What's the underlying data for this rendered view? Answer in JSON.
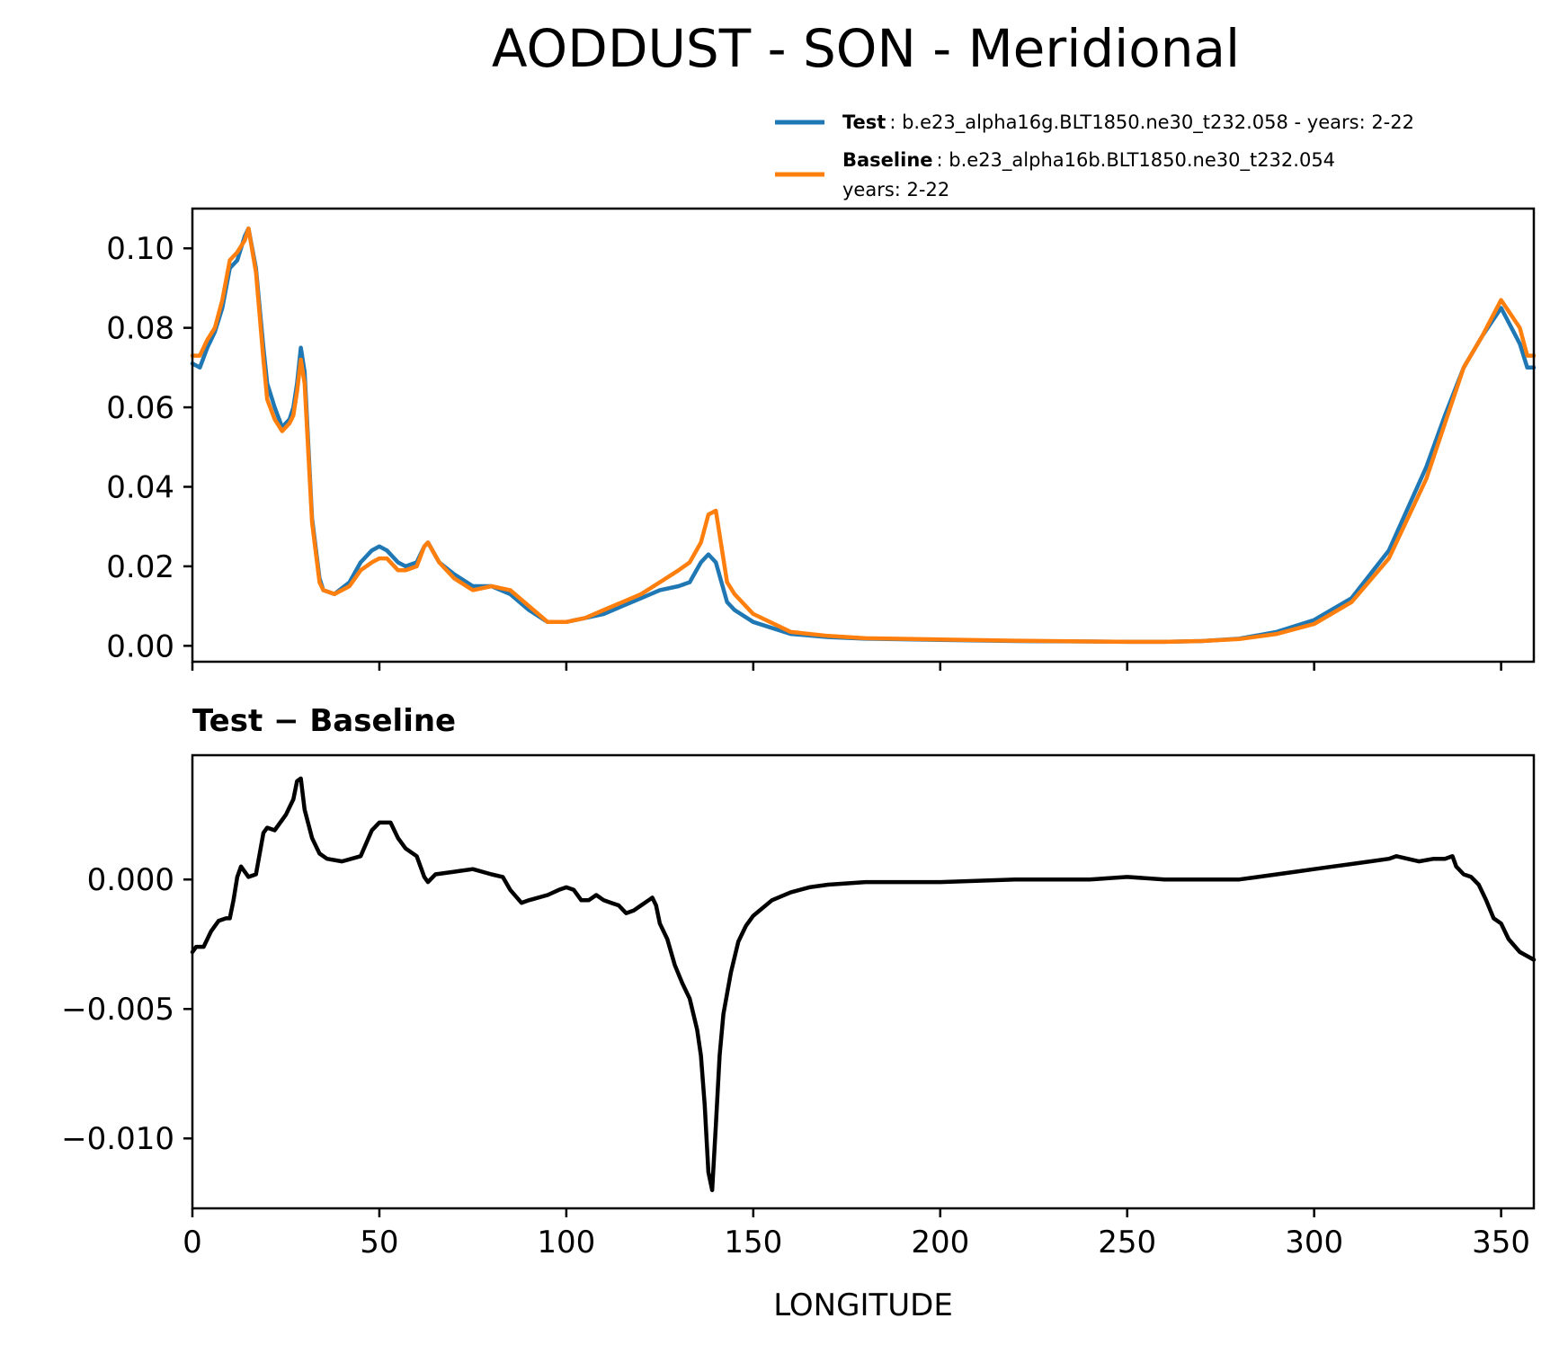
{
  "chart_data": [
    {
      "type": "line",
      "title": "AODDUST - SON - Meridional",
      "xlabel": "",
      "ylabel": "",
      "xlim": [
        0,
        358.75
      ],
      "ylim": [
        -0.004,
        0.11
      ],
      "yticks": [
        "0.00",
        "0.02",
        "0.04",
        "0.06",
        "0.08",
        "0.10"
      ],
      "ytick_values": [
        0,
        0.02,
        0.04,
        0.06,
        0.08,
        0.1
      ],
      "grid": false,
      "legend_position": "above-right",
      "legend": [
        {
          "bold": "Test",
          "text": ": b.e23_alpha16g.BLT1850.ne30_t232.058 - years: 2-22"
        },
        {
          "bold": "Baseline",
          "text": ": b.e23_alpha16b.BLT1850.ne30_t232.054",
          "text2": "years: 2-22"
        }
      ],
      "series": [
        {
          "name": "Test",
          "color": "#1f77b4",
          "x": [
            0,
            2,
            4,
            6,
            8,
            10,
            12,
            14,
            15,
            17,
            19,
            20,
            22,
            24,
            26,
            27,
            28,
            29,
            30,
            32,
            34,
            35,
            38,
            42,
            45,
            48,
            50,
            52,
            55,
            57,
            60,
            62,
            63,
            66,
            70,
            75,
            80,
            85,
            90,
            95,
            100,
            105,
            110,
            115,
            120,
            125,
            130,
            133,
            136,
            138,
            140,
            143,
            145,
            150,
            160,
            170,
            180,
            200,
            220,
            240,
            250,
            260,
            270,
            280,
            290,
            300,
            310,
            320,
            330,
            335,
            340,
            345,
            350,
            355,
            357,
            358.75
          ],
          "values": [
            0.071,
            0.07,
            0.075,
            0.079,
            0.085,
            0.095,
            0.097,
            0.103,
            0.105,
            0.095,
            0.075,
            0.066,
            0.06,
            0.055,
            0.057,
            0.06,
            0.066,
            0.075,
            0.069,
            0.032,
            0.017,
            0.014,
            0.013,
            0.016,
            0.021,
            0.024,
            0.025,
            0.024,
            0.021,
            0.02,
            0.021,
            0.025,
            0.026,
            0.021,
            0.018,
            0.015,
            0.015,
            0.013,
            0.009,
            0.006,
            0.006,
            0.007,
            0.008,
            0.01,
            0.012,
            0.014,
            0.015,
            0.016,
            0.021,
            0.023,
            0.021,
            0.011,
            0.009,
            0.006,
            0.003,
            0.0022,
            0.0018,
            0.0015,
            0.0012,
            0.0011,
            0.001,
            0.001,
            0.0012,
            0.0018,
            0.0035,
            0.0065,
            0.012,
            0.024,
            0.045,
            0.058,
            0.07,
            0.078,
            0.085,
            0.076,
            0.07,
            0.07
          ]
        },
        {
          "name": "Baseline",
          "color": "#ff7f0e",
          "x": [
            0,
            2,
            4,
            6,
            8,
            10,
            12,
            14,
            15,
            17,
            19,
            20,
            22,
            24,
            26,
            27,
            28,
            29,
            30,
            32,
            34,
            35,
            38,
            42,
            45,
            48,
            50,
            52,
            55,
            57,
            60,
            62,
            63,
            66,
            70,
            75,
            80,
            85,
            90,
            95,
            100,
            105,
            110,
            115,
            120,
            125,
            130,
            133,
            136,
            138,
            140,
            143,
            145,
            150,
            160,
            170,
            180,
            200,
            220,
            240,
            250,
            260,
            270,
            280,
            290,
            300,
            310,
            320,
            330,
            335,
            340,
            345,
            350,
            355,
            357,
            358.75
          ],
          "values": [
            0.073,
            0.073,
            0.077,
            0.08,
            0.087,
            0.097,
            0.099,
            0.102,
            0.105,
            0.094,
            0.072,
            0.062,
            0.057,
            0.054,
            0.056,
            0.058,
            0.064,
            0.072,
            0.066,
            0.031,
            0.016,
            0.014,
            0.013,
            0.015,
            0.019,
            0.021,
            0.022,
            0.022,
            0.019,
            0.019,
            0.02,
            0.025,
            0.026,
            0.021,
            0.017,
            0.014,
            0.015,
            0.014,
            0.01,
            0.006,
            0.006,
            0.007,
            0.009,
            0.011,
            0.013,
            0.016,
            0.019,
            0.021,
            0.026,
            0.033,
            0.034,
            0.016,
            0.013,
            0.008,
            0.0035,
            0.0025,
            0.0019,
            0.0016,
            0.0013,
            0.0011,
            0.001,
            0.001,
            0.0012,
            0.0017,
            0.003,
            0.0055,
            0.011,
            0.022,
            0.042,
            0.056,
            0.07,
            0.078,
            0.087,
            0.08,
            0.073,
            0.073
          ]
        }
      ]
    },
    {
      "type": "line",
      "title": "Test − Baseline",
      "xlabel": "LONGITUDE",
      "ylabel": "",
      "xlim": [
        0,
        358.75
      ],
      "ylim": [
        -0.0127,
        0.0048
      ],
      "xticks": [
        "0",
        "50",
        "100",
        "150",
        "200",
        "250",
        "300",
        "350"
      ],
      "xtick_values": [
        0,
        50,
        100,
        150,
        200,
        250,
        300,
        350
      ],
      "yticks": [
        "−0.010",
        "−0.005",
        "0.000"
      ],
      "ytick_values": [
        -0.01,
        -0.005,
        0
      ],
      "grid": false,
      "series": [
        {
          "name": "",
          "color": "#000000",
          "x": [
            0,
            1,
            3,
            5,
            7,
            9,
            10,
            11,
            12,
            13,
            15,
            17,
            19,
            20,
            22,
            25,
            27,
            28,
            29,
            30,
            32,
            34,
            36,
            40,
            45,
            48,
            50,
            53,
            55,
            57,
            60,
            62,
            63,
            65,
            70,
            75,
            80,
            83,
            85,
            88,
            90,
            95,
            98,
            100,
            102,
            104,
            106,
            108,
            110,
            112,
            114,
            116,
            118,
            120,
            122,
            123,
            124,
            125,
            127,
            129,
            131,
            133,
            135,
            136,
            137,
            138,
            139,
            140,
            141,
            142,
            144,
            146,
            148,
            150,
            155,
            160,
            165,
            170,
            180,
            200,
            220,
            240,
            250,
            260,
            270,
            280,
            285,
            290,
            295,
            300,
            305,
            310,
            315,
            320,
            322,
            325,
            328,
            332,
            335,
            337,
            338,
            340,
            342,
            344,
            346,
            348,
            350,
            352,
            355,
            358.75
          ],
          "values": [
            -0.0028,
            -0.0026,
            -0.0026,
            -0.002,
            -0.0016,
            -0.0015,
            -0.0015,
            -0.0008,
            0.0001,
            0.0005,
            0.0001,
            0.0002,
            0.0018,
            0.002,
            0.0019,
            0.0025,
            0.0031,
            0.0038,
            0.0039,
            0.0027,
            0.0016,
            0.001,
            0.0008,
            0.0007,
            0.0009,
            0.0019,
            0.0022,
            0.0022,
            0.0016,
            0.0012,
            0.0009,
            0.0001,
            -0.0001,
            0.0002,
            0.0003,
            0.0004,
            0.0002,
            0.0001,
            -0.0004,
            -0.0009,
            -0.0008,
            -0.0006,
            -0.0004,
            -0.0003,
            -0.0004,
            -0.0008,
            -0.0008,
            -0.0006,
            -0.0008,
            -0.0009,
            -0.001,
            -0.0013,
            -0.0012,
            -0.001,
            -0.0008,
            -0.0007,
            -0.001,
            -0.0017,
            -0.0023,
            -0.0033,
            -0.004,
            -0.0046,
            -0.0058,
            -0.0068,
            -0.0087,
            -0.0113,
            -0.012,
            -0.0095,
            -0.0068,
            -0.0052,
            -0.0036,
            -0.0024,
            -0.0018,
            -0.0014,
            -0.0008,
            -0.0005,
            -0.0003,
            -0.0002,
            -0.0001,
            -0.0001,
            0,
            0,
            0.0001,
            0,
            0,
            0,
            0.0001,
            0.0002,
            0.0003,
            0.0004,
            0.0005,
            0.0006,
            0.0007,
            0.0008,
            0.0009,
            0.0008,
            0.0007,
            0.0008,
            0.0008,
            0.0009,
            0.0005,
            0.0002,
            0.0001,
            -0.0002,
            -0.0008,
            -0.0015,
            -0.0017,
            -0.0023,
            -0.0028,
            -0.0031
          ]
        }
      ]
    }
  ]
}
